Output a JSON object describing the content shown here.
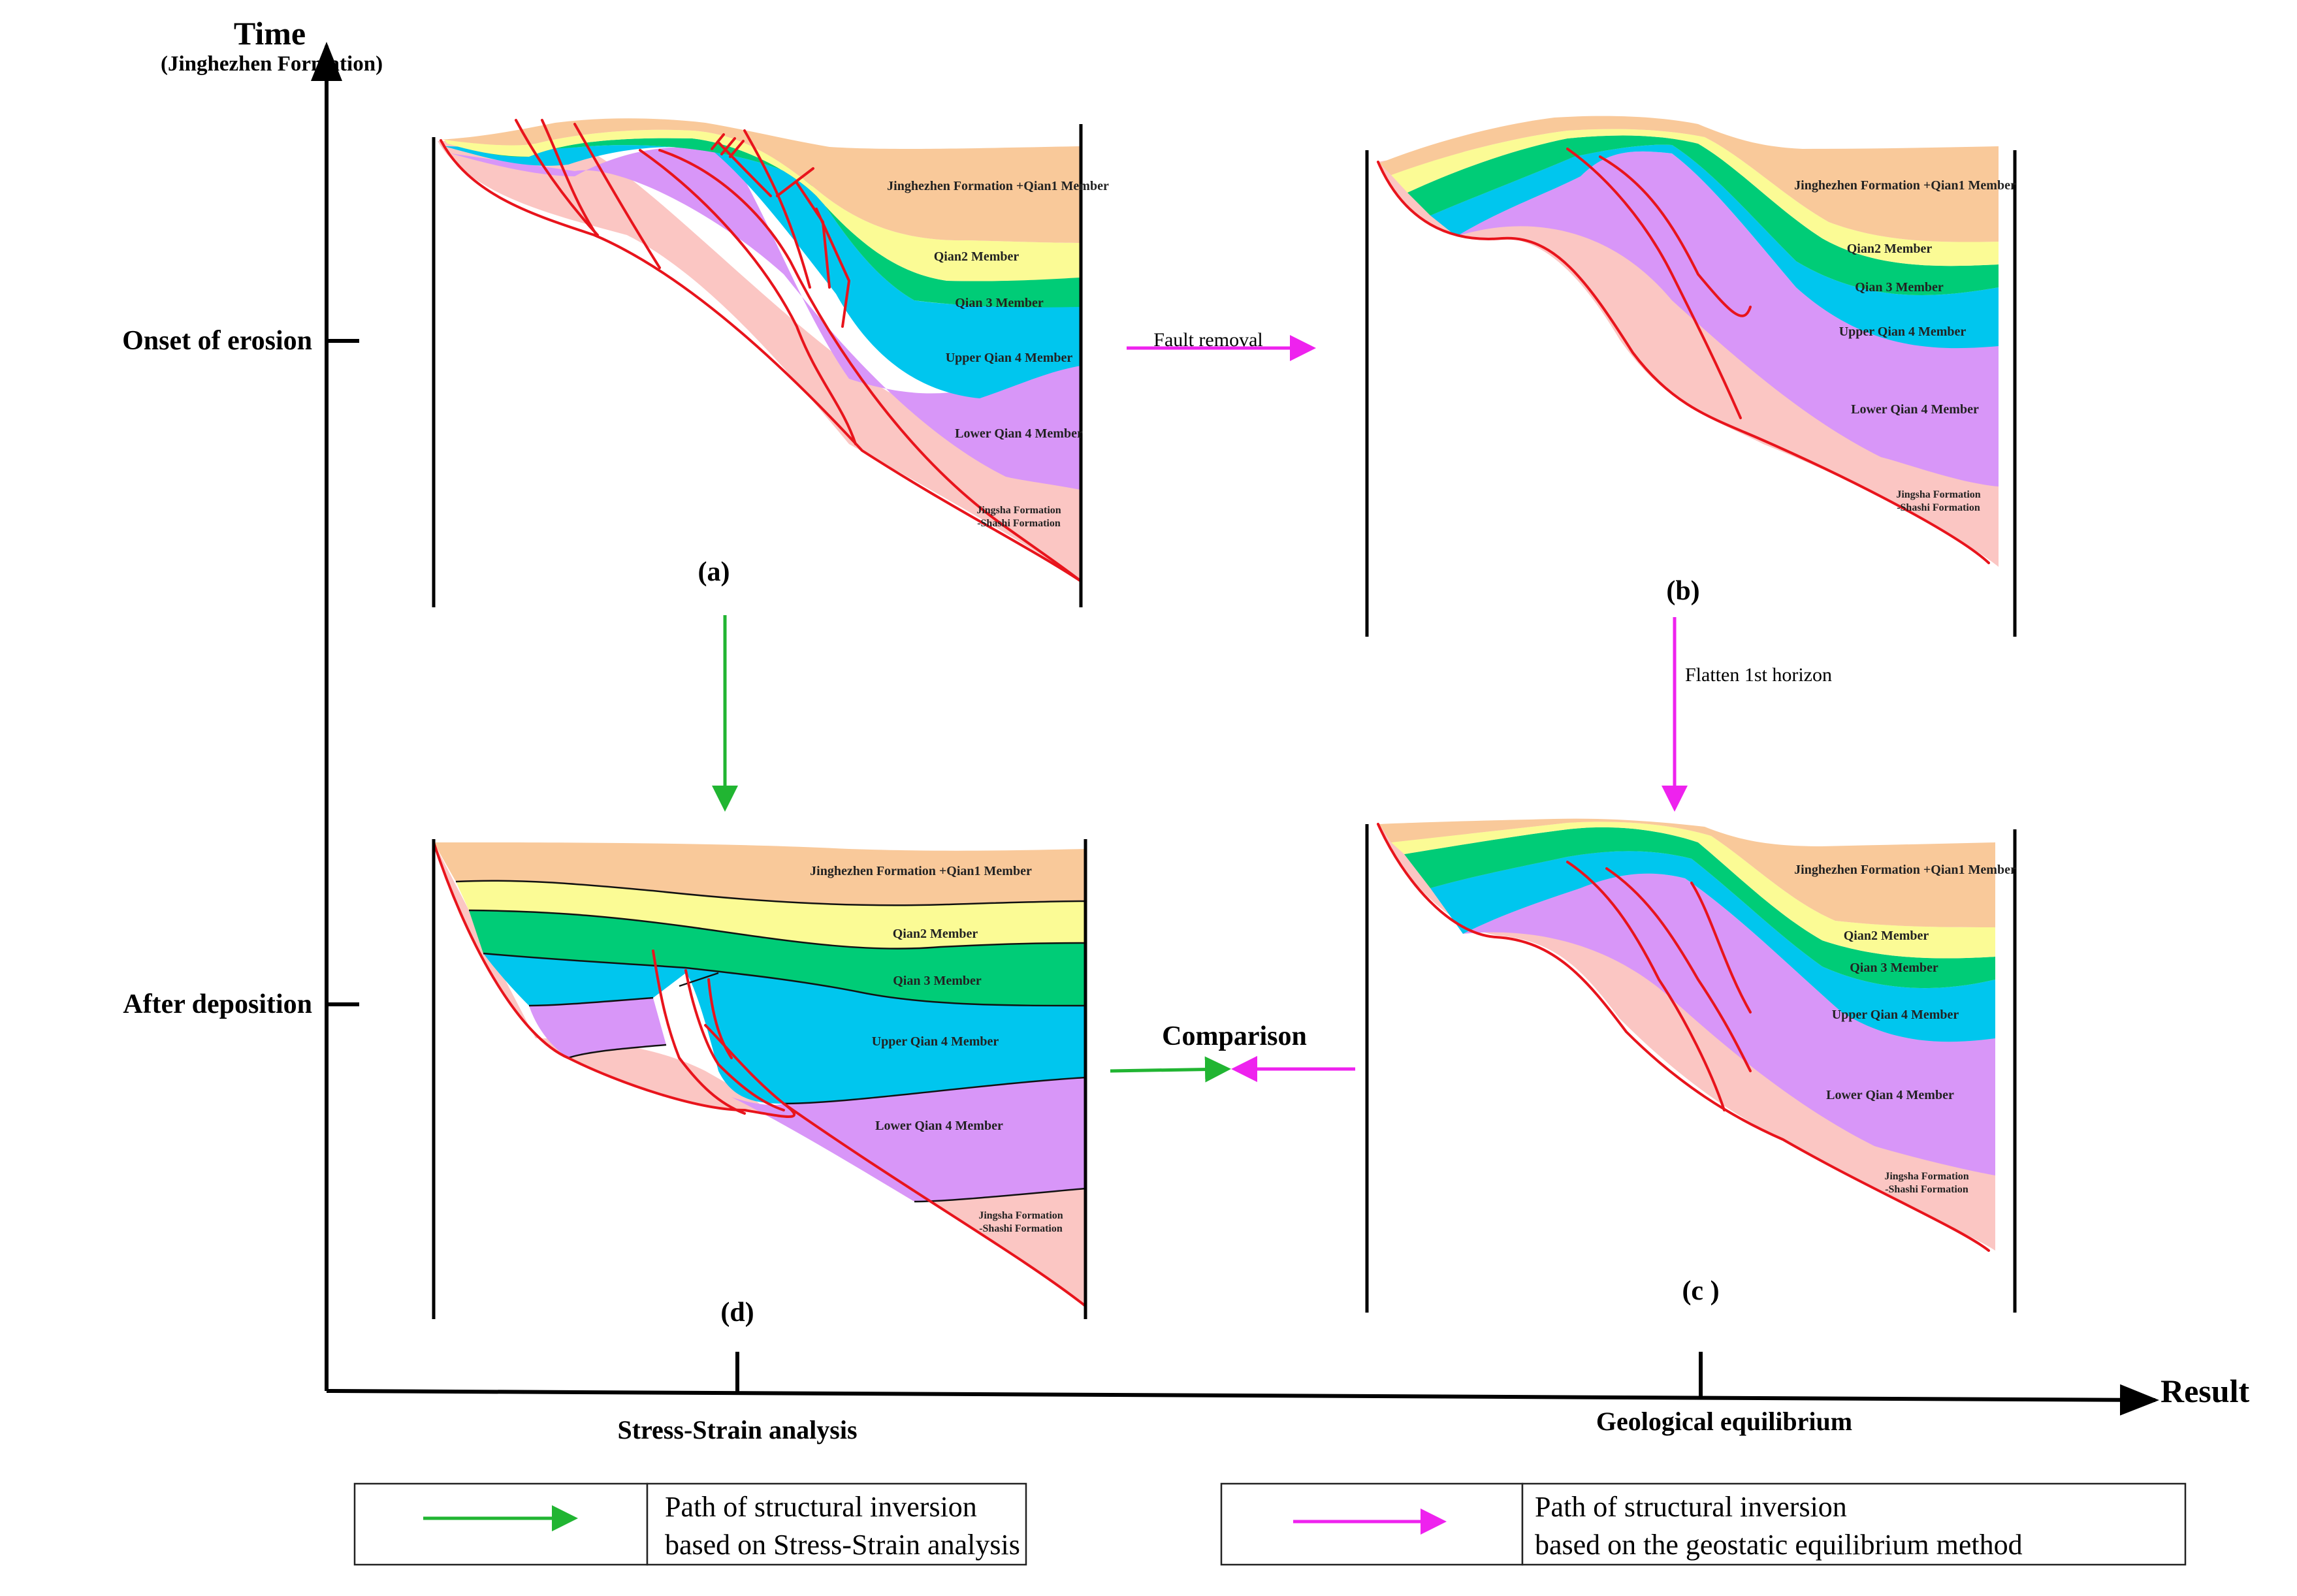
{
  "axes": {
    "y_title": "Time",
    "y_subtitle": "(Jinghezhen Formation)",
    "x_title": "Result",
    "y_ticks": [
      "Onset of erosion",
      "After deposition"
    ],
    "x_ticks": [
      "Stress-Strain analysis",
      "Geological equilibrium"
    ]
  },
  "panels": {
    "a": {
      "label": "(a)"
    },
    "b": {
      "label": "(b)"
    },
    "c": {
      "label": "(c )"
    },
    "d": {
      "label": "(d)"
    }
  },
  "layers": {
    "jinghezhen_qian1": "Jinghezhen Formation +Qian1 Member",
    "qian2": "Qian2 Member",
    "qian3": "Qian 3 Member",
    "upper_qian4": "Upper  Qian 4 Member",
    "lower_qian4": "Lower  Qian 4 Member",
    "jingsha_line1": "Jingsha Formation",
    "jingsha_line2": "-Shashi Formation"
  },
  "steps": {
    "fault_removal": "Fault removal",
    "flatten": "Flatten 1st horizon",
    "comparison": "Comparison"
  },
  "legend": [
    {
      "text_line1": "Path of structural inversion",
      "text_line2": "based on Stress-Strain analysis",
      "color": "#21b532"
    },
    {
      "text_line1": "Path of structural inversion",
      "text_line2": "based on the geostatic equilibrium method",
      "color": "#ee22ee"
    }
  ],
  "colors": {
    "jinghezhen_qian1": "#f9c99a",
    "qian2": "#fbfb95",
    "qian3": "#00cc77",
    "upper_qian4": "#00c6ee",
    "lower_qian4": "#d896f8",
    "jingsha_shashi": "#fbc6c3",
    "fault": "#e8141c",
    "green_arrow": "#21b532",
    "magenta_arrow": "#ee22ee"
  }
}
